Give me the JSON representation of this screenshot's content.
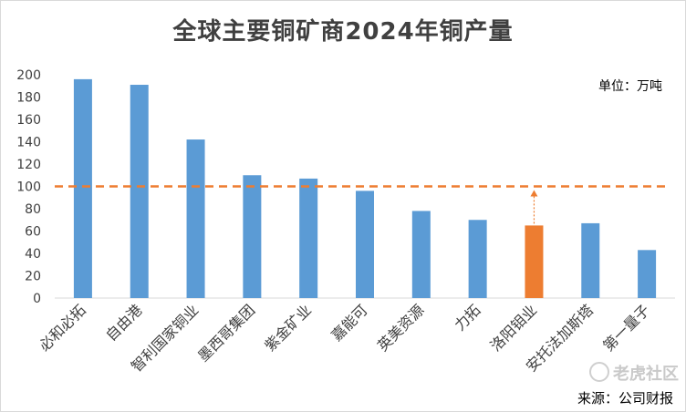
{
  "chart_data": {
    "type": "bar",
    "title": "全球主要铜矿商2024年铜产量",
    "unit_label": "单位：万吨",
    "source": "来源：公司财报",
    "categories": [
      "必和必拓",
      "自由港",
      "智利国家铜业",
      "墨西哥集团",
      "紫金矿业",
      "嘉能可",
      "英美资源",
      "力拓",
      "洛阳钼业",
      "安托法加斯塔",
      "第一量子"
    ],
    "values": [
      196,
      191,
      142,
      110,
      107,
      96,
      78,
      70,
      65,
      67,
      43
    ],
    "highlight_index": 8,
    "reference_line": 100,
    "ylim": [
      0,
      200
    ],
    "yticks": [
      0,
      20,
      40,
      60,
      80,
      100,
      120,
      140,
      160,
      180,
      200
    ],
    "colors": {
      "bar": "#5B9BD5",
      "highlight": "#ED7D31",
      "reference_line": "#ED7D31"
    },
    "xlabel": "",
    "ylabel": ""
  },
  "watermark": "老虎社区"
}
